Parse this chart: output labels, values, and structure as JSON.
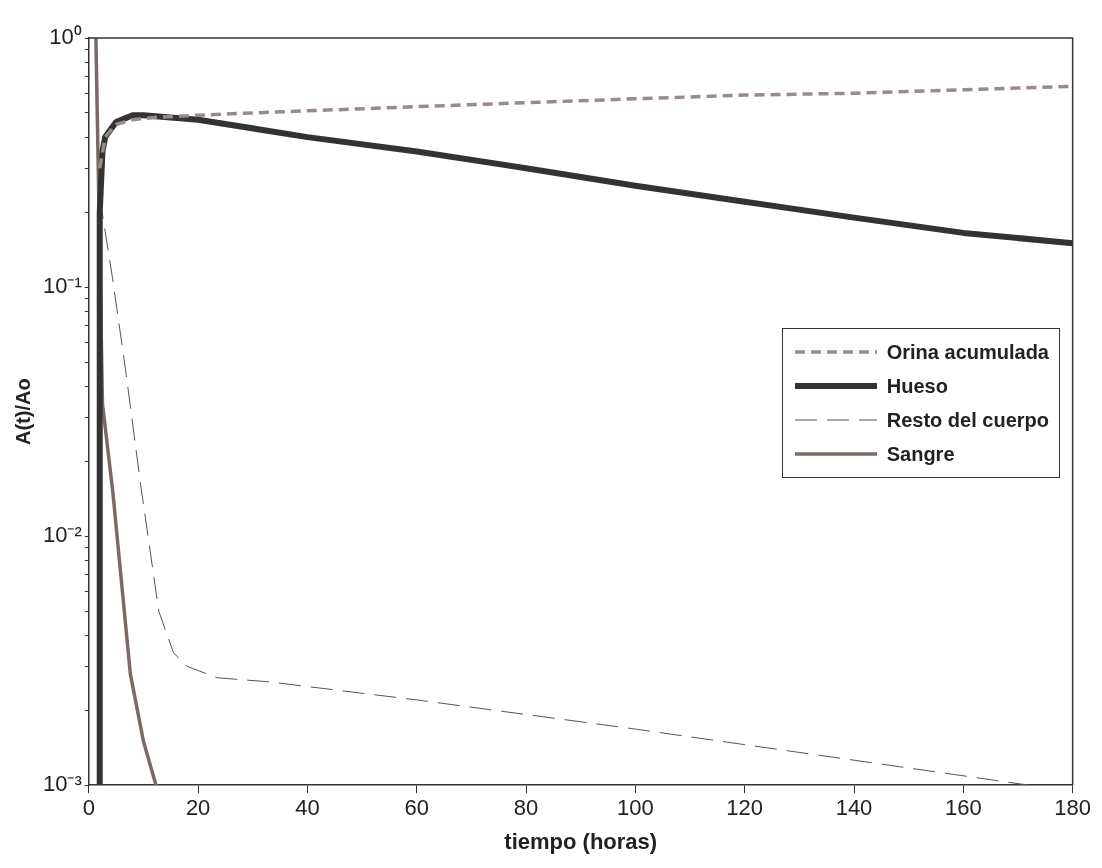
{
  "chart_data": {
    "type": "line",
    "xlabel": "tiempo (horas)",
    "ylabel": "A(t)/Ao",
    "log": "y",
    "grid": false,
    "legend": "right",
    "marker": "none",
    "xlim": [
      0,
      180
    ],
    "xticks": [
      0,
      20,
      40,
      60,
      80,
      100,
      120,
      140,
      160,
      180
    ],
    "ylim": [
      0.001,
      1
    ],
    "yticks": [
      {
        "value": 0.001,
        "label": "10⁻³"
      },
      {
        "value": 0.002,
        "label": null
      },
      {
        "value": 0.003,
        "label": null
      },
      {
        "value": 0.004,
        "label": null
      },
      {
        "value": 0.005,
        "label": null
      },
      {
        "value": 0.006,
        "label": null
      },
      {
        "value": 0.007,
        "label": null
      },
      {
        "value": 0.008,
        "label": null
      },
      {
        "value": 0.009,
        "label": null
      },
      {
        "value": 0.01,
        "label": "10⁻²"
      },
      {
        "value": 0.02,
        "label": null
      },
      {
        "value": 0.03,
        "label": null
      },
      {
        "value": 0.04,
        "label": null
      },
      {
        "value": 0.05,
        "label": null
      },
      {
        "value": 0.06,
        "label": null
      },
      {
        "value": 0.07,
        "label": null
      },
      {
        "value": 0.08,
        "label": null
      },
      {
        "value": 0.09,
        "label": null
      },
      {
        "value": 0.1,
        "label": "10⁻¹"
      },
      {
        "value": 0.2,
        "label": null
      },
      {
        "value": 0.3,
        "label": null
      },
      {
        "value": 0.4,
        "label": null
      },
      {
        "value": 0.5,
        "label": null
      },
      {
        "value": 0.6,
        "label": null
      },
      {
        "value": 0.7,
        "label": null
      },
      {
        "value": 0.8,
        "label": null
      },
      {
        "value": 0.9,
        "label": null
      },
      {
        "value": 1,
        "label": "10⁰"
      }
    ],
    "series": [
      {
        "name": "Orina acumulada",
        "color": "#9a8a86",
        "line_style": "dashed",
        "x": [
          2,
          3,
          5,
          8,
          12,
          20,
          30,
          40,
          60,
          80,
          100,
          120,
          140,
          160,
          180
        ],
        "values": [
          0.3,
          0.4,
          0.45,
          0.47,
          0.48,
          0.49,
          0.5,
          0.51,
          0.53,
          0.55,
          0.57,
          0.59,
          0.6,
          0.62,
          0.64
        ]
      },
      {
        "name": "Hueso",
        "color": "#333333",
        "line_style": "solid",
        "x": [
          2,
          2,
          2.5,
          3,
          5,
          8,
          10,
          15,
          20,
          40,
          60,
          80,
          100,
          120,
          140,
          160,
          180
        ],
        "values": [
          0.001,
          0.2,
          0.35,
          0.4,
          0.46,
          0.49,
          0.49,
          0.48,
          0.47,
          0.4,
          0.35,
          0.3,
          0.255,
          0.22,
          0.19,
          0.165,
          0.15
        ]
      },
      {
        "name": "Resto del cuerpo",
        "color": "#555555",
        "line_style": "dashed",
        "x": [
          2,
          4.3,
          6.7,
          9.5,
          12.8,
          15.5,
          18,
          23.5,
          33,
          60,
          100,
          140,
          172
        ],
        "values": [
          0.23,
          0.11,
          0.047,
          0.016,
          0.005,
          0.0034,
          0.003,
          0.0027,
          0.0026,
          0.0022,
          0.00168,
          0.00126,
          0.001
        ]
      },
      {
        "name": "Sangre",
        "color": "#7a6a66",
        "line_style": "solid",
        "x": [
          1.3,
          2.5,
          4.4,
          7.6,
          10,
          12.3
        ],
        "values": [
          1,
          0.034,
          0.015,
          0.0028,
          0.0015,
          0.001
        ]
      }
    ]
  }
}
